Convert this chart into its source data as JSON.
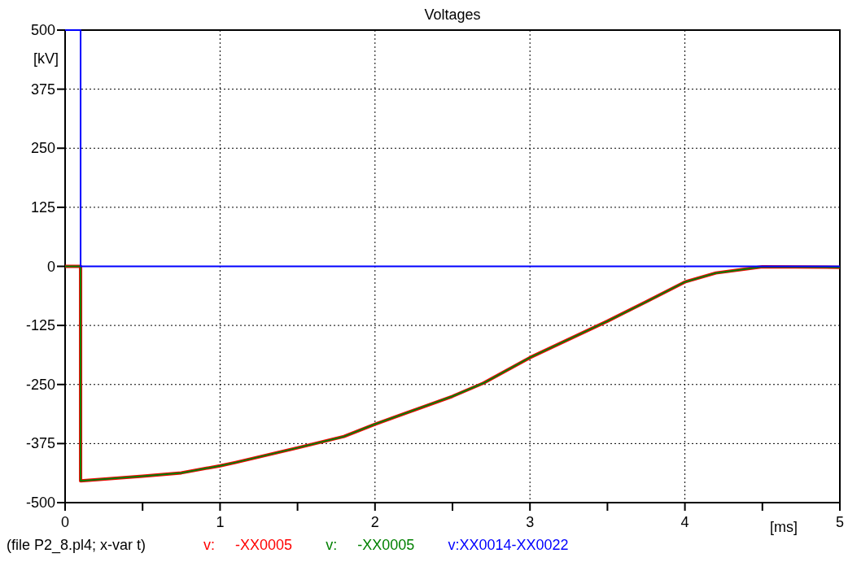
{
  "chart_data": {
    "type": "line",
    "title": "Voltages",
    "xlabel": "[ms]",
    "ylabel": "[kV]",
    "annotations": [
      "(file P2_8.pl4; x-var t)"
    ],
    "xlim": [
      0,
      5
    ],
    "xticks": [
      0,
      1,
      2,
      3,
      4,
      5
    ],
    "ylim": [
      -500,
      500
    ],
    "yticks": [
      -500,
      -375,
      -250,
      -125,
      0,
      125,
      250,
      375,
      500
    ],
    "grid": true,
    "legend": "bottom",
    "line_style": "solid",
    "marker": "none",
    "series": [
      {
        "name": "v:     -XX0005",
        "color": "#ff0000",
        "x": [
          0,
          0.1,
          0.1,
          0.5,
          0.75,
          1,
          1.1,
          1.5,
          1.8,
          2,
          2.5,
          2.7,
          3,
          3.5,
          3.75,
          4,
          4.2,
          4.5,
          5
        ],
        "values": [
          0,
          0,
          -454,
          -444,
          -437,
          -422,
          -415,
          -384,
          -360,
          -334,
          -275,
          -247,
          -193,
          -116,
          -75,
          -33,
          -14,
          -1,
          -2
        ]
      },
      {
        "name": "v:     -XX0005",
        "color": "#008000",
        "x": [
          0,
          0.1,
          0.1,
          0.5,
          0.75,
          1,
          1.1,
          1.5,
          1.8,
          2,
          2.5,
          2.7,
          3,
          3.5,
          3.75,
          4,
          4.2,
          4.5,
          5
        ],
        "values": [
          0,
          0,
          -454,
          -444,
          -437,
          -422,
          -415,
          -384,
          -360,
          -334,
          -275,
          -247,
          -193,
          -116,
          -75,
          -33,
          -14,
          -1,
          -2
        ]
      },
      {
        "name": "v:XX0014-XX0022",
        "color": "#0000ff",
        "x": [
          0,
          0.1,
          0.1,
          5
        ],
        "values": [
          500,
          500,
          0,
          0
        ]
      }
    ]
  }
}
